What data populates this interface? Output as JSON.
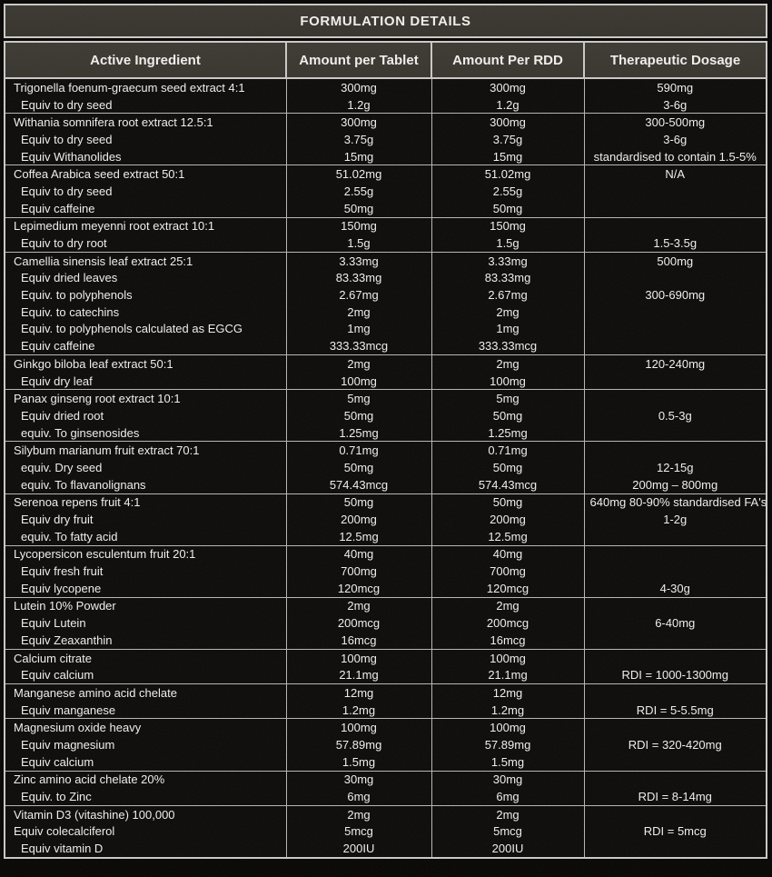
{
  "title": "FORMULATION DETAILS",
  "columns": [
    "Active Ingredient",
    "Amount per Tablet",
    "Amount Per RDD",
    "Therapeutic Dosage"
  ],
  "colors": {
    "page_bg": "#070605",
    "panel_bg": "#39352f",
    "body_bg": "#0d0b09",
    "line_strong": "#cbc9c6",
    "line": "#b9b7b4",
    "text": "#f1efec"
  },
  "groups": [
    {
      "rows": [
        {
          "ingredient": "Trigonella foenum-graecum seed extract 4:1",
          "indent": false,
          "per_tablet": "300mg",
          "per_rdd": "300mg",
          "dosage": "590mg"
        },
        {
          "ingredient": "Equiv to dry seed",
          "indent": true,
          "per_tablet": "1.2g",
          "per_rdd": "1.2g",
          "dosage": "3-6g"
        }
      ]
    },
    {
      "rows": [
        {
          "ingredient": "Withania somnifera root extract 12.5:1",
          "indent": false,
          "per_tablet": "300mg",
          "per_rdd": "300mg",
          "dosage": "300-500mg"
        },
        {
          "ingredient": "Equiv to dry seed",
          "indent": true,
          "per_tablet": "3.75g",
          "per_rdd": "3.75g",
          "dosage": "3-6g"
        },
        {
          "ingredient": "Equiv Withanolides",
          "indent": true,
          "per_tablet": "15mg",
          "per_rdd": "15mg",
          "dosage": "standardised to contain 1.5-5%"
        }
      ]
    },
    {
      "rows": [
        {
          "ingredient": "Coffea Arabica seed extract 50:1",
          "indent": false,
          "per_tablet": "51.02mg",
          "per_rdd": "51.02mg",
          "dosage": "N/A"
        },
        {
          "ingredient": "Equiv to dry seed",
          "indent": true,
          "per_tablet": "2.55g",
          "per_rdd": "2.55g",
          "dosage": ""
        },
        {
          "ingredient": "Equiv caffeine",
          "indent": true,
          "per_tablet": "50mg",
          "per_rdd": "50mg",
          "dosage": ""
        }
      ]
    },
    {
      "rows": [
        {
          "ingredient": "Lepimedium meyenni root extract 10:1",
          "indent": false,
          "per_tablet": "150mg",
          "per_rdd": "150mg",
          "dosage": ""
        },
        {
          "ingredient": "Equiv to dry root",
          "indent": true,
          "per_tablet": "1.5g",
          "per_rdd": "1.5g",
          "dosage": "1.5-3.5g"
        }
      ]
    },
    {
      "rows": [
        {
          "ingredient": "Camellia sinensis leaf extract 25:1",
          "indent": false,
          "per_tablet": "3.33mg",
          "per_rdd": "3.33mg",
          "dosage": "500mg"
        },
        {
          "ingredient": "Equiv dried leaves",
          "indent": true,
          "per_tablet": "83.33mg",
          "per_rdd": "83.33mg",
          "dosage": ""
        },
        {
          "ingredient": "Equiv. to polyphenols",
          "indent": true,
          "per_tablet": "2.67mg",
          "per_rdd": "2.67mg",
          "dosage": "300-690mg"
        },
        {
          "ingredient": "Equiv. to catechins",
          "indent": true,
          "per_tablet": "2mg",
          "per_rdd": "2mg",
          "dosage": ""
        },
        {
          "ingredient": "Equiv. to polyphenols calculated as EGCG",
          "indent": true,
          "per_tablet": "1mg",
          "per_rdd": "1mg",
          "dosage": ""
        },
        {
          "ingredient": "Equiv caffeine",
          "indent": true,
          "per_tablet": "333.33mcg",
          "per_rdd": "333.33mcg",
          "dosage": ""
        }
      ]
    },
    {
      "rows": [
        {
          "ingredient": "Ginkgo biloba leaf extract 50:1",
          "indent": false,
          "per_tablet": "2mg",
          "per_rdd": "2mg",
          "dosage": "120-240mg"
        },
        {
          "ingredient": "Equiv dry leaf",
          "indent": true,
          "per_tablet": "100mg",
          "per_rdd": "100mg",
          "dosage": ""
        }
      ]
    },
    {
      "rows": [
        {
          "ingredient": "Panax ginseng root extract 10:1",
          "indent": false,
          "per_tablet": "5mg",
          "per_rdd": "5mg",
          "dosage": ""
        },
        {
          "ingredient": "Equiv dried root",
          "indent": true,
          "per_tablet": "50mg",
          "per_rdd": "50mg",
          "dosage": "0.5-3g"
        },
        {
          "ingredient": "equiv. To ginsenosides",
          "indent": true,
          "per_tablet": "1.25mg",
          "per_rdd": "1.25mg",
          "dosage": ""
        }
      ]
    },
    {
      "rows": [
        {
          "ingredient": "Silybum marianum fruit extract 70:1",
          "indent": false,
          "per_tablet": "0.71mg",
          "per_rdd": "0.71mg",
          "dosage": ""
        },
        {
          "ingredient": "equiv. Dry seed",
          "indent": true,
          "per_tablet": "50mg",
          "per_rdd": "50mg",
          "dosage": "12-15g"
        },
        {
          "ingredient": "equiv. To flavanolignans",
          "indent": true,
          "per_tablet": "574.43mcg",
          "per_rdd": "574.43mcg",
          "dosage": "200mg – 800mg"
        }
      ]
    },
    {
      "rows": [
        {
          "ingredient": "Serenoa repens fruit 4:1",
          "indent": false,
          "per_tablet": "50mg",
          "per_rdd": "50mg",
          "dosage": "640mg 80-90% standardised FA's"
        },
        {
          "ingredient": "Equiv dry fruit",
          "indent": true,
          "per_tablet": "200mg",
          "per_rdd": "200mg",
          "dosage": "1-2g"
        },
        {
          "ingredient": "equiv. To fatty acid",
          "indent": true,
          "per_tablet": "12.5mg",
          "per_rdd": "12.5mg",
          "dosage": ""
        }
      ]
    },
    {
      "rows": [
        {
          "ingredient": "Lycopersicon esculentum fruit 20:1",
          "indent": false,
          "per_tablet": "40mg",
          "per_rdd": "40mg",
          "dosage": ""
        },
        {
          "ingredient": "Equiv fresh fruit",
          "indent": true,
          "per_tablet": "700mg",
          "per_rdd": "700mg",
          "dosage": ""
        },
        {
          "ingredient": "Equiv lycopene",
          "indent": true,
          "per_tablet": "120mcg",
          "per_rdd": "120mcg",
          "dosage": "4-30g"
        }
      ]
    },
    {
      "rows": [
        {
          "ingredient": "Lutein 10% Powder",
          "indent": false,
          "per_tablet": "2mg",
          "per_rdd": "2mg",
          "dosage": ""
        },
        {
          "ingredient": "Equiv Lutein",
          "indent": true,
          "per_tablet": "200mcg",
          "per_rdd": "200mcg",
          "dosage": "6-40mg"
        },
        {
          "ingredient": "Equiv Zeaxanthin",
          "indent": true,
          "per_tablet": "16mcg",
          "per_rdd": "16mcg",
          "dosage": ""
        }
      ]
    },
    {
      "rows": [
        {
          "ingredient": "Calcium citrate",
          "indent": false,
          "per_tablet": "100mg",
          "per_rdd": "100mg",
          "dosage": ""
        },
        {
          "ingredient": "Equiv calcium",
          "indent": true,
          "per_tablet": "21.1mg",
          "per_rdd": "21.1mg",
          "dosage": "RDI = 1000-1300mg"
        }
      ]
    },
    {
      "rows": [
        {
          "ingredient": "Manganese amino acid chelate",
          "indent": false,
          "per_tablet": "12mg",
          "per_rdd": "12mg",
          "dosage": ""
        },
        {
          "ingredient": "Equiv manganese",
          "indent": true,
          "per_tablet": "1.2mg",
          "per_rdd": "1.2mg",
          "dosage": "RDI = 5-5.5mg"
        }
      ]
    },
    {
      "rows": [
        {
          "ingredient": "Magnesium oxide heavy",
          "indent": false,
          "per_tablet": "100mg",
          "per_rdd": "100mg",
          "dosage": ""
        },
        {
          "ingredient": "Equiv magnesium",
          "indent": true,
          "per_tablet": "57.89mg",
          "per_rdd": "57.89mg",
          "dosage": "RDI = 320-420mg"
        },
        {
          "ingredient": "Equiv calcium",
          "indent": true,
          "per_tablet": "1.5mg",
          "per_rdd": "1.5mg",
          "dosage": ""
        }
      ]
    },
    {
      "rows": [
        {
          "ingredient": "Zinc amino acid chelate 20%",
          "indent": false,
          "per_tablet": "30mg",
          "per_rdd": "30mg",
          "dosage": ""
        },
        {
          "ingredient": "Equiv. to Zinc",
          "indent": true,
          "per_tablet": "6mg",
          "per_rdd": "6mg",
          "dosage": "RDI = 8-14mg"
        }
      ]
    },
    {
      "rows": [
        {
          "ingredient": "Vitamin D3 (vitashine) 100,000",
          "indent": false,
          "per_tablet": "2mg",
          "per_rdd": "2mg",
          "dosage": ""
        },
        {
          "ingredient": "Equiv colecalciferol",
          "indent": false,
          "per_tablet": "5mcg",
          "per_rdd": "5mcg",
          "dosage": "RDI = 5mcg"
        },
        {
          "ingredient": "Equiv vitamin D",
          "indent": true,
          "per_tablet": "200IU",
          "per_rdd": "200IU",
          "dosage": ""
        }
      ]
    }
  ]
}
